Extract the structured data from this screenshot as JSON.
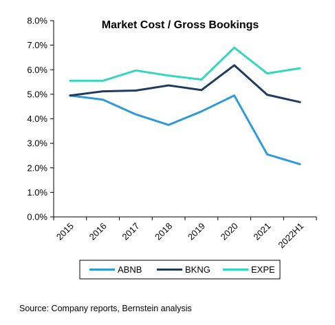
{
  "chart_data": {
    "type": "line",
    "title": "Market Cost / Gross Bookings",
    "xlabel": "",
    "ylabel": "",
    "categories": [
      "2015",
      "2016",
      "2017",
      "2018",
      "2019",
      "2020",
      "2021",
      "2022H1"
    ],
    "ylim": [
      0,
      8
    ],
    "yticks": [
      "0.0%",
      "1.0%",
      "2.0%",
      "3.0%",
      "4.0%",
      "5.0%",
      "6.0%",
      "7.0%",
      "8.0%"
    ],
    "grid": false,
    "legend_position": "bottom",
    "series": [
      {
        "name": "ABNB",
        "color": "#2E9AD9",
        "values": [
          4.95,
          4.78,
          4.18,
          3.75,
          4.3,
          4.95,
          2.55,
          2.15
        ]
      },
      {
        "name": "BKNG",
        "color": "#1F3B5E",
        "values": [
          4.95,
          5.12,
          5.15,
          5.36,
          5.17,
          6.18,
          4.98,
          4.68
        ]
      },
      {
        "name": "EXPE",
        "color": "#35D6C0",
        "values": [
          5.55,
          5.55,
          5.97,
          5.76,
          5.6,
          6.9,
          5.85,
          6.06
        ]
      }
    ]
  },
  "footer": {
    "source": "Source: Company reports, Bernstein analysis"
  }
}
